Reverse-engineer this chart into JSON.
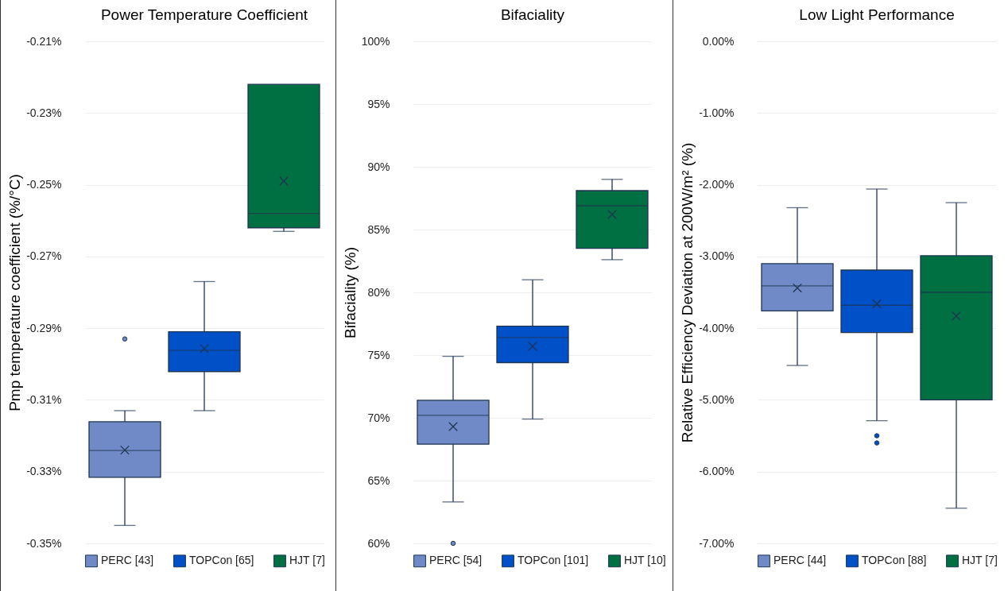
{
  "chart_data": [
    {
      "type": "box",
      "title": "Power Temperature Coefficient",
      "ylabel": "Pmp temperature coefficient (%/°C)",
      "categories": [
        null,
        null,
        null
      ],
      "ylim": [
        -0.35,
        -0.21
      ],
      "yticks": [
        {
          "value": -0.35,
          "label": "-0.35%"
        },
        {
          "value": -0.33,
          "label": "-0.33%"
        },
        {
          "value": -0.31,
          "label": "-0.31%"
        },
        {
          "value": -0.29,
          "label": "-0.29%"
        },
        {
          "value": -0.27,
          "label": "-0.27%"
        },
        {
          "value": -0.25,
          "label": "-0.25%"
        },
        {
          "value": -0.23,
          "label": "-0.23%"
        },
        {
          "value": -0.21,
          "label": "-0.21%"
        }
      ],
      "grid": "y",
      "legend": "bottom",
      "tick_labels": "y",
      "series": [
        {
          "name": "PERC [43]",
          "color": "#6f8ac6",
          "boxes": [
            {
              "low": -0.345,
              "q1": -0.3316,
              "median": -0.3241,
              "q3": -0.3161,
              "high": -0.313,
              "mean": -0.324,
              "outliers": [
                -0.293
              ]
            },
            null,
            null
          ]
        },
        {
          "name": "TOPCon [65]",
          "color": "#0050c8",
          "boxes": [
            null,
            {
              "low": -0.313,
              "q1": -0.3021,
              "median": -0.2962,
              "q3": -0.291,
              "high": -0.277,
              "mean": -0.2957
            },
            null
          ]
        },
        {
          "name": "HJT [7]",
          "color": "#007042",
          "boxes": [
            null,
            null,
            {
              "low": -0.263,
              "q1": -0.262,
              "median": -0.258,
              "q3": -0.222,
              "high": -0.222,
              "mean": -0.249
            }
          ]
        }
      ]
    },
    {
      "type": "box",
      "title": "Bifaciality",
      "ylabel": "Bifaciality (%)",
      "categories": [
        null,
        null,
        null
      ],
      "ylim": [
        60,
        100
      ],
      "yticks": [
        {
          "value": 60,
          "label": "60%"
        },
        {
          "value": 65,
          "label": "65%"
        },
        {
          "value": 70,
          "label": "70%"
        },
        {
          "value": 75,
          "label": "75%"
        },
        {
          "value": 80,
          "label": "80%"
        },
        {
          "value": 85,
          "label": "85%"
        },
        {
          "value": 90,
          "label": "90%"
        },
        {
          "value": 95,
          "label": "95%"
        },
        {
          "value": 100,
          "label": "100%"
        }
      ],
      "grid": "y",
      "legend": "bottom",
      "tick_labels": "y",
      "series": [
        {
          "name": "PERC [54]",
          "color": "#6f8ac6",
          "boxes": [
            {
              "low": 63.3,
              "q1": 67.9,
              "median": 70.2,
              "q3": 71.4,
              "high": 74.9,
              "mean": 69.3,
              "outliers": [
                60
              ]
            },
            null,
            null
          ]
        },
        {
          "name": "TOPCon [101]",
          "color": "#0050c8",
          "boxes": [
            null,
            {
              "low": 69.9,
              "q1": 74.4,
              "median": 76.4,
              "q3": 77.3,
              "high": 81,
              "mean": 75.7
            },
            null
          ]
        },
        {
          "name": "HJT [10]",
          "color": "#007042",
          "boxes": [
            null,
            null,
            {
              "low": 82.6,
              "q1": 83.5,
              "median": 86.9,
              "q3": 88.1,
              "high": 89,
              "mean": 86.2
            }
          ]
        }
      ]
    },
    {
      "type": "box",
      "title": "Low Light Performance",
      "ylabel": "Relative Efficiency Deviation at 200W/m² (%)",
      "categories": [
        null,
        null,
        null
      ],
      "ylim": [
        -7,
        0
      ],
      "yticks": [
        {
          "value": -7,
          "label": "-7.00%"
        },
        {
          "value": -6,
          "label": "-6.00%"
        },
        {
          "value": -5,
          "label": "-5.00%"
        },
        {
          "value": -4,
          "label": "-4.00%"
        },
        {
          "value": -3,
          "label": "-3.00%"
        },
        {
          "value": -2,
          "label": "-2.00%"
        },
        {
          "value": -1,
          "label": "-1.00%"
        },
        {
          "value": 0,
          "label": "0.00%"
        }
      ],
      "grid": "y",
      "legend": "bottom",
      "tick_labels": "y",
      "series": [
        {
          "name": "PERC [44]",
          "color": "#6f8ac6",
          "boxes": [
            {
              "low": -4.52,
              "q1": -3.76,
              "median": -3.41,
              "q3": -3.1,
              "high": -2.32,
              "mean": -3.44
            },
            null,
            null
          ]
        },
        {
          "name": "TOPCon [88]",
          "color": "#0050c8",
          "boxes": [
            null,
            {
              "low": -5.29,
              "q1": -4.06,
              "median": -3.68,
              "q3": -3.19,
              "high": -2.06,
              "mean": -3.66,
              "outliers": [
                -5.5,
                -5.6
              ]
            },
            null
          ]
        },
        {
          "name": "HJT [7]",
          "color": "#007042",
          "boxes": [
            null,
            null,
            {
              "low": -6.51,
              "q1": -5,
              "median": -3.5,
              "q3": -2.99,
              "high": -2.25,
              "mean": -3.83
            }
          ]
        }
      ]
    }
  ]
}
